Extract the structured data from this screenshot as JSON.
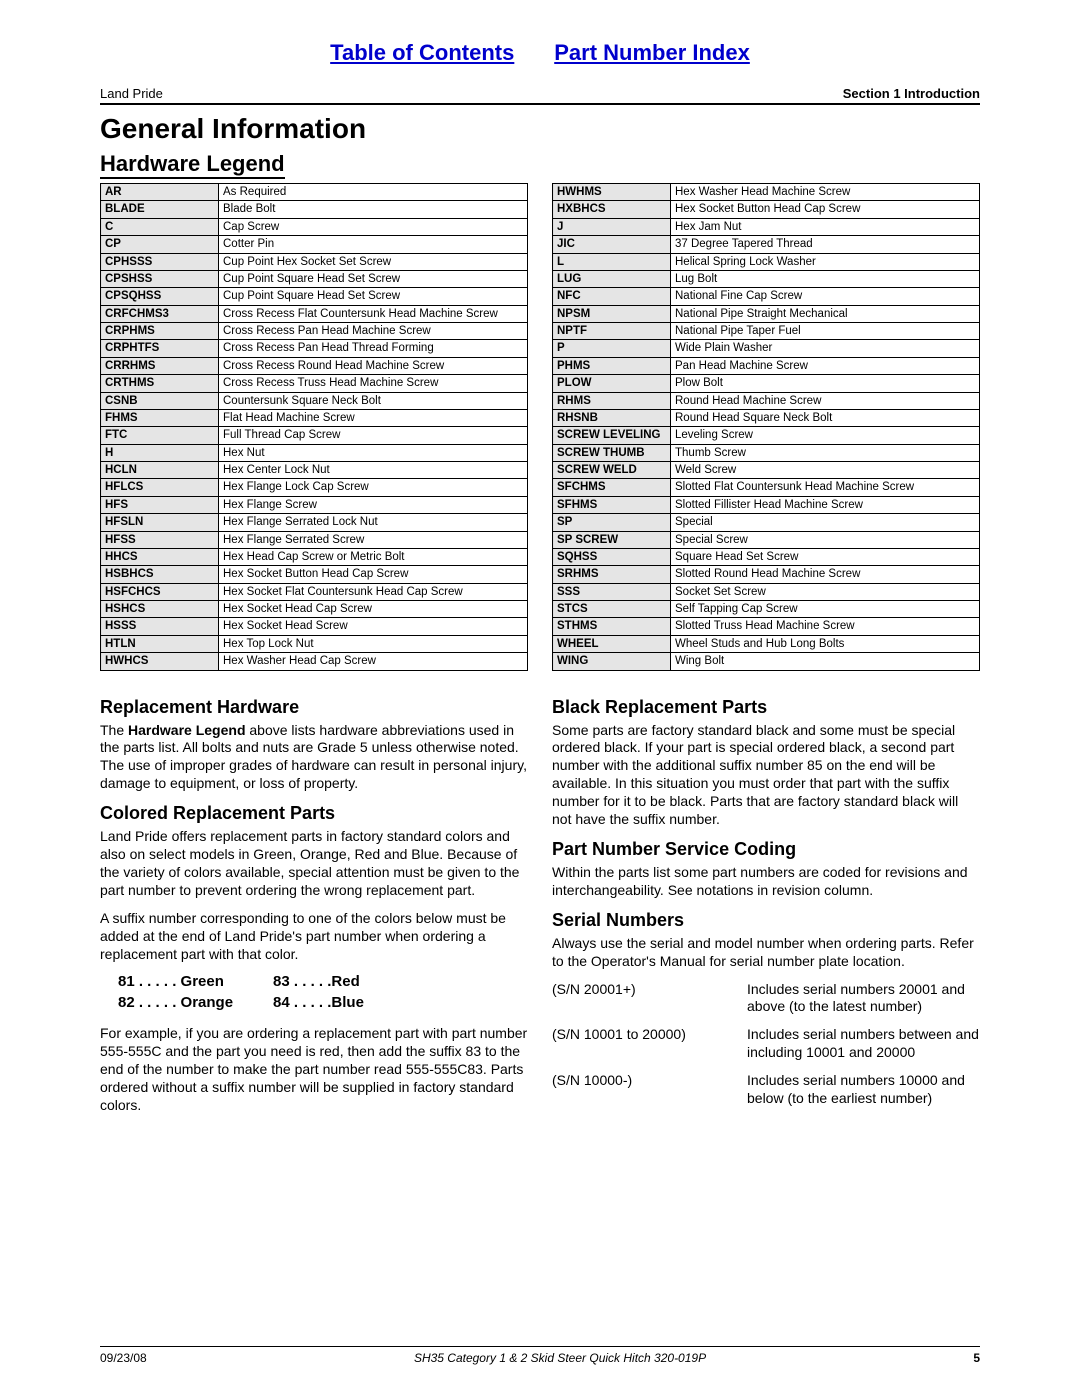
{
  "top_links": {
    "toc": "Table of Contents",
    "pni": "Part Number Index"
  },
  "header": {
    "left": "Land Pride",
    "right": "Section 1  Introduction"
  },
  "main_title": "General Information",
  "hardware_legend_title": "Hardware Legend",
  "legend_left": [
    [
      "AR",
      "As Required"
    ],
    [
      "BLADE",
      "Blade Bolt"
    ],
    [
      "C",
      "Cap Screw"
    ],
    [
      "CP",
      "Cotter Pin"
    ],
    [
      "CPHSSS",
      "Cup Point Hex Socket Set Screw"
    ],
    [
      "CPSHSS",
      "Cup Point Square Head Set Screw"
    ],
    [
      "CPSQHSS",
      "Cup Point Square Head Set Screw"
    ],
    [
      "CRFCHMS3",
      "Cross Recess Flat Countersunk Head Machine Screw"
    ],
    [
      "CRPHMS",
      "Cross Recess Pan Head Machine Screw"
    ],
    [
      "CRPHTFS",
      "Cross Recess Pan Head Thread Forming"
    ],
    [
      "CRRHMS",
      "Cross Recess Round Head Machine Screw"
    ],
    [
      "CRTHMS",
      "Cross Recess Truss Head Machine Screw"
    ],
    [
      "CSNB",
      "Countersunk Square Neck Bolt"
    ],
    [
      "FHMS",
      "Flat Head Machine Screw"
    ],
    [
      "FTC",
      "Full Thread Cap Screw"
    ],
    [
      "H",
      "Hex Nut"
    ],
    [
      "HCLN",
      "Hex Center Lock Nut"
    ],
    [
      "HFLCS",
      "Hex Flange Lock Cap Screw"
    ],
    [
      "HFS",
      "Hex Flange Screw"
    ],
    [
      "HFSLN",
      "Hex Flange Serrated Lock Nut"
    ],
    [
      "HFSS",
      "Hex Flange Serrated Screw"
    ],
    [
      "HHCS",
      "Hex Head Cap Screw or Metric Bolt"
    ],
    [
      "HSBHCS",
      "Hex Socket Button Head Cap Screw"
    ],
    [
      "HSFCHCS",
      "Hex Socket Flat Countersunk Head Cap Screw"
    ],
    [
      "HSHCS",
      "Hex Socket Head Cap Screw"
    ],
    [
      "HSSS",
      "Hex Socket Head Screw"
    ],
    [
      "HTLN",
      "Hex Top Lock Nut"
    ],
    [
      "HWHCS",
      "Hex Washer Head Cap Screw"
    ]
  ],
  "legend_right": [
    [
      "HWHMS",
      "Hex Washer Head Machine Screw"
    ],
    [
      "HXBHCS",
      "Hex Socket Button Head Cap Screw"
    ],
    [
      "J",
      "Hex Jam Nut"
    ],
    [
      "JIC",
      "37 Degree Tapered Thread"
    ],
    [
      "L",
      "Helical Spring Lock Washer"
    ],
    [
      "LUG",
      "Lug Bolt"
    ],
    [
      "NFC",
      "National Fine Cap Screw"
    ],
    [
      "NPSM",
      "National Pipe Straight Mechanical"
    ],
    [
      "NPTF",
      "National Pipe Taper Fuel"
    ],
    [
      "P",
      "Wide Plain Washer"
    ],
    [
      "PHMS",
      "Pan Head Machine Screw"
    ],
    [
      "PLOW",
      "Plow Bolt"
    ],
    [
      "RHMS",
      "Round Head Machine Screw"
    ],
    [
      "RHSNB",
      "Round Head Square Neck Bolt"
    ],
    [
      "SCREW LEVELING",
      "Leveling Screw"
    ],
    [
      "SCREW THUMB",
      "Thumb Screw"
    ],
    [
      "SCREW WELD",
      "Weld Screw"
    ],
    [
      "SFCHMS",
      "Slotted Flat Countersunk Head Machine Screw"
    ],
    [
      "SFHMS",
      "Slotted Fillister Head Machine Screw"
    ],
    [
      "SP",
      "Special"
    ],
    [
      "SP SCREW",
      "Special Screw"
    ],
    [
      "SQHSS",
      "Square Head Set Screw"
    ],
    [
      "SRHMS",
      "Slotted Round Head Machine Screw"
    ],
    [
      "SSS",
      "Socket Set Screw"
    ],
    [
      "STCS",
      "Self Tapping Cap Screw"
    ],
    [
      "STHMS",
      "Slotted Truss Head Machine Screw"
    ],
    [
      "WHEEL",
      "Wheel Studs and Hub Long Bolts"
    ],
    [
      "WING",
      "Wing Bolt"
    ]
  ],
  "left_col": {
    "replacement_title": "Replacement Hardware",
    "replacement_body": "The Hardware Legend above lists hardware abbreviations used in the parts list. All bolts and nuts are Grade 5 unless otherwise noted. The use of improper grades of hardware can result in personal injury, damage to equipment, or loss of property.",
    "colored_title": "Colored Replacement Parts",
    "colored_body1": "Land Pride offers replacement parts in factory standard colors and also on select models in Green, Orange, Red and Blue. Because of the variety of colors available, special attention must be given to the part number to prevent ordering the wrong replacement part.",
    "colored_body2": "A suffix number corresponding to one of the colors below must be added at the end of Land Pride's part number when ordering a replacement part with that color.",
    "codes": {
      "c81": "81 . . . . .  Green",
      "c82": "82 . . . . .  Orange",
      "c83": "83  . . . . .Red",
      "c84": "84  . . . . .Blue"
    },
    "colored_body3": "For example, if you are ordering a replacement part with part number 555-555C and the part you need is red, then add the suffix 83 to the end of the number to make the part number read 555-555C83. Parts ordered without a suffix number will be supplied in factory standard colors."
  },
  "right_col": {
    "black_title": "Black Replacement Parts",
    "black_body": "Some parts are factory standard black and some must be special ordered black. If your part is special ordered black, a second part number with the additional suffix number 85 on the end will be available. In this situation you must order that part with the suffix number for it to be black. Parts that are factory standard black will not have the suffix number.",
    "coding_title": "Part Number Service Coding",
    "coding_body": "Within the parts list some part numbers are coded for revisions and interchangeability. See notations in revision column.",
    "serial_title": "Serial Numbers",
    "serial_body": "Always use the serial and model number when ordering parts. Refer to the Operator's Manual for serial number plate location.",
    "serial_rows": [
      {
        "lab": "(S/N 20001+)",
        "desc": "Includes serial numbers 20001 and above (to the latest number)"
      },
      {
        "lab": "(S/N 10001 to 20000)",
        "desc": "Includes serial numbers between and including 10001 and 20000"
      },
      {
        "lab": "(S/N 10000-)",
        "desc": "Includes serial numbers 10000 and below (to the earliest number)"
      }
    ]
  },
  "footer": {
    "date": "09/23/08",
    "title": "SH35 Category 1 & 2 Skid Steer Quick Hitch 320-019P",
    "page": "5"
  }
}
